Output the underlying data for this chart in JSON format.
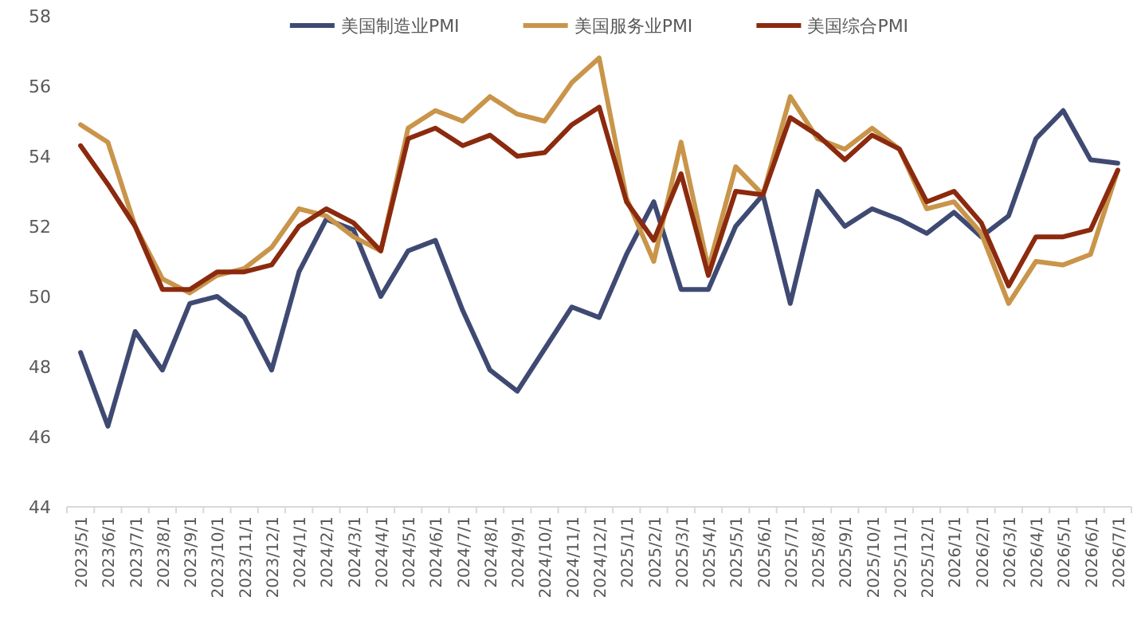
{
  "chart_data": {
    "type": "line",
    "categories": [
      "2023/5/1",
      "2023/6/1",
      "2023/7/1",
      "2023/8/1",
      "2023/9/1",
      "2023/10/1",
      "2023/11/1",
      "2023/12/1",
      "2024/1/1",
      "2024/2/1",
      "2024/3/1",
      "2024/4/1",
      "2024/5/1",
      "2024/6/1",
      "2024/7/1",
      "2024/8/1",
      "2024/9/1",
      "2024/10/1",
      "2024/11/1",
      "2024/12/1",
      "2025/1/1",
      "2025/2/1",
      "2025/3/1",
      "2025/4/1",
      "2025/5/1",
      "2025/6/1",
      "2025/7/1",
      "2025/8/1",
      "2025/9/1",
      "2025/10/1",
      "2025/11/1",
      "2025/12/1",
      "2026/1/1",
      "2026/2/1",
      "2026/3/1",
      "2026/4/1",
      "2026/5/1",
      "2026/6/1",
      "2026/7/1"
    ],
    "series": [
      {
        "name": "美国制造业PMI",
        "color": "#3f4a73",
        "values": [
          48.4,
          46.3,
          49.0,
          47.9,
          49.8,
          50.0,
          49.4,
          47.9,
          50.7,
          52.2,
          51.9,
          50.0,
          51.3,
          51.6,
          49.6,
          47.9,
          47.3,
          48.5,
          49.7,
          49.4,
          51.2,
          52.7,
          50.2,
          50.2,
          52.0,
          52.9,
          49.8,
          53.0,
          52.0,
          52.5,
          52.2,
          51.8,
          52.4,
          51.7,
          52.3,
          54.5,
          55.3,
          53.9,
          53.8
        ]
      },
      {
        "name": "美国服务业PMI",
        "color": "#c8954a",
        "values": [
          54.9,
          54.4,
          52.0,
          50.5,
          50.1,
          50.6,
          50.8,
          51.4,
          52.5,
          52.3,
          51.7,
          51.3,
          54.8,
          55.3,
          55.0,
          55.7,
          55.2,
          55.0,
          56.1,
          56.8,
          52.8,
          51.0,
          54.4,
          50.8,
          53.7,
          52.9,
          55.7,
          54.5,
          54.2,
          54.8,
          54.2,
          52.5,
          52.7,
          51.8,
          49.8,
          51.0,
          50.9,
          51.2,
          53.6
        ]
      },
      {
        "name": "美国综合PMI",
        "color": "#8b2a0e",
        "values": [
          54.3,
          53.2,
          52.0,
          50.2,
          50.2,
          50.7,
          50.7,
          50.9,
          52.0,
          52.5,
          52.1,
          51.3,
          54.5,
          54.8,
          54.3,
          54.6,
          54.0,
          54.1,
          54.9,
          55.4,
          52.7,
          51.6,
          53.5,
          50.6,
          53.0,
          52.9,
          55.1,
          54.6,
          53.9,
          54.6,
          54.2,
          52.7,
          53.0,
          52.1,
          50.3,
          51.7,
          51.7,
          51.9,
          53.6
        ]
      }
    ],
    "ylim": [
      44,
      58
    ],
    "yticks": [
      44,
      46,
      48,
      50,
      52,
      54,
      56,
      58
    ],
    "grid": false,
    "legend": "top",
    "marker": "none",
    "line_style": "solid"
  }
}
